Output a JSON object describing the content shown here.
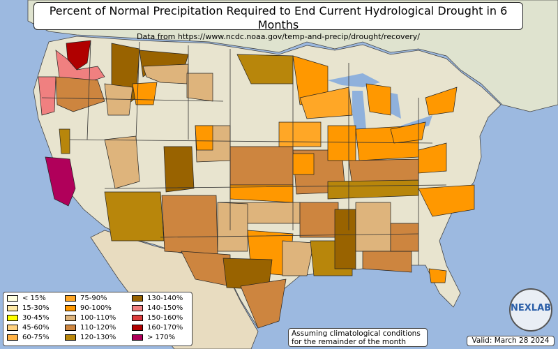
{
  "title": "Percent of Normal Precipitation Required to End Current Hydrological Drought in 6 Months",
  "subtitle": "Data from https://www.ncdc.noaa.gov/temp-and-precip/drought/recovery/",
  "note_line1": "Assuming climatological conditions",
  "note_line2": "for the remainder of the month",
  "valid": "Valid: March 28 2024",
  "logo_text": "NEXLAB",
  "colors": {
    "ocean": "#9cb9e0",
    "land": "#e8e4cf",
    "canada": "#dfe3cf",
    "mexico": "#e8dcc0",
    "lake": "#8fb1dc",
    "mountain": "#cfc6a8"
  },
  "legend": [
    {
      "label": "< 15%",
      "color": "#ffffe0"
    },
    {
      "label": "15-30%",
      "color": "#ffeaa6"
    },
    {
      "label": "30-45%",
      "color": "#ffff00"
    },
    {
      "label": "45-60%",
      "color": "#ffd27f"
    },
    {
      "label": "60-75%",
      "color": "#ffb347"
    },
    {
      "label": "75-90%",
      "color": "#ffa726"
    },
    {
      "label": "90-100%",
      "color": "#ff9800"
    },
    {
      "label": "100-110%",
      "color": "#deb47c"
    },
    {
      "label": "110-120%",
      "color": "#cd853f"
    },
    {
      "label": "120-130%",
      "color": "#b8860b"
    },
    {
      "label": "130-140%",
      "color": "#996300"
    },
    {
      "label": "140-150%",
      "color": "#f08080"
    },
    {
      "label": "150-160%",
      "color": "#dc3c3c"
    },
    {
      "label": "160-170%",
      "color": "#b00000"
    },
    {
      "label": "> 170%",
      "color": "#b0005a"
    }
  ]
}
